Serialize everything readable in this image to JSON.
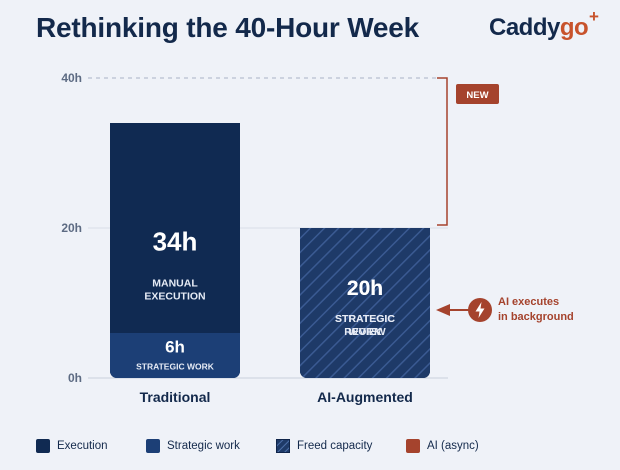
{
  "header": {
    "title": "Rethinking the 40-Hour Week"
  },
  "brand": {
    "text_main": "Caddy",
    "text_accent": "go",
    "plus": "+"
  },
  "colors": {
    "execution": "#102a52",
    "strategic": "#1c3f76",
    "freed_base": "#1e3a68",
    "freed_stripe": "#3a5a92",
    "ai": "#a5432d",
    "axis_text": "#5d6b83",
    "grid": "#c9d0dd",
    "title": "#13294b"
  },
  "chart_data": {
    "type": "bar",
    "stacked": true,
    "title": "Rethinking the 40-Hour Week",
    "categories": [
      "Traditional",
      "AI-Augmented"
    ],
    "y_ticks": [
      "0h",
      "20h",
      "40h"
    ],
    "ylim": [
      0,
      40
    ],
    "bars": [
      {
        "category": "Traditional",
        "segments": [
          {
            "series": "execution",
            "value": 34,
            "value_label": "34h",
            "line1": "MANUAL",
            "line2": "EXECUTION"
          },
          {
            "series": "strategic",
            "value": 6,
            "value_label": "6h",
            "line1": "STRATEGIC WORK",
            "line2": ""
          }
        ]
      },
      {
        "category": "AI-Augmented",
        "segments": [
          {
            "series": "execution",
            "value": 20,
            "value_label": "20h",
            "line1": "STRATEGIC",
            "line2": "REVIEW"
          },
          {
            "series": "freed",
            "value": 20,
            "value_label": "20h",
            "line1": "STRATEGIC",
            "line2": "WORK"
          }
        ]
      }
    ],
    "annotations": {
      "badge": "NEW",
      "ai_note_line1": "AI executes",
      "ai_note_line2": "in background"
    },
    "legend_position": "bottom",
    "grid": true
  },
  "legend": [
    {
      "key": "execution",
      "label": "Execution"
    },
    {
      "key": "strategic",
      "label": "Strategic work"
    },
    {
      "key": "freed",
      "label": "Freed capacity"
    },
    {
      "key": "ai",
      "label": "AI (async)"
    }
  ]
}
